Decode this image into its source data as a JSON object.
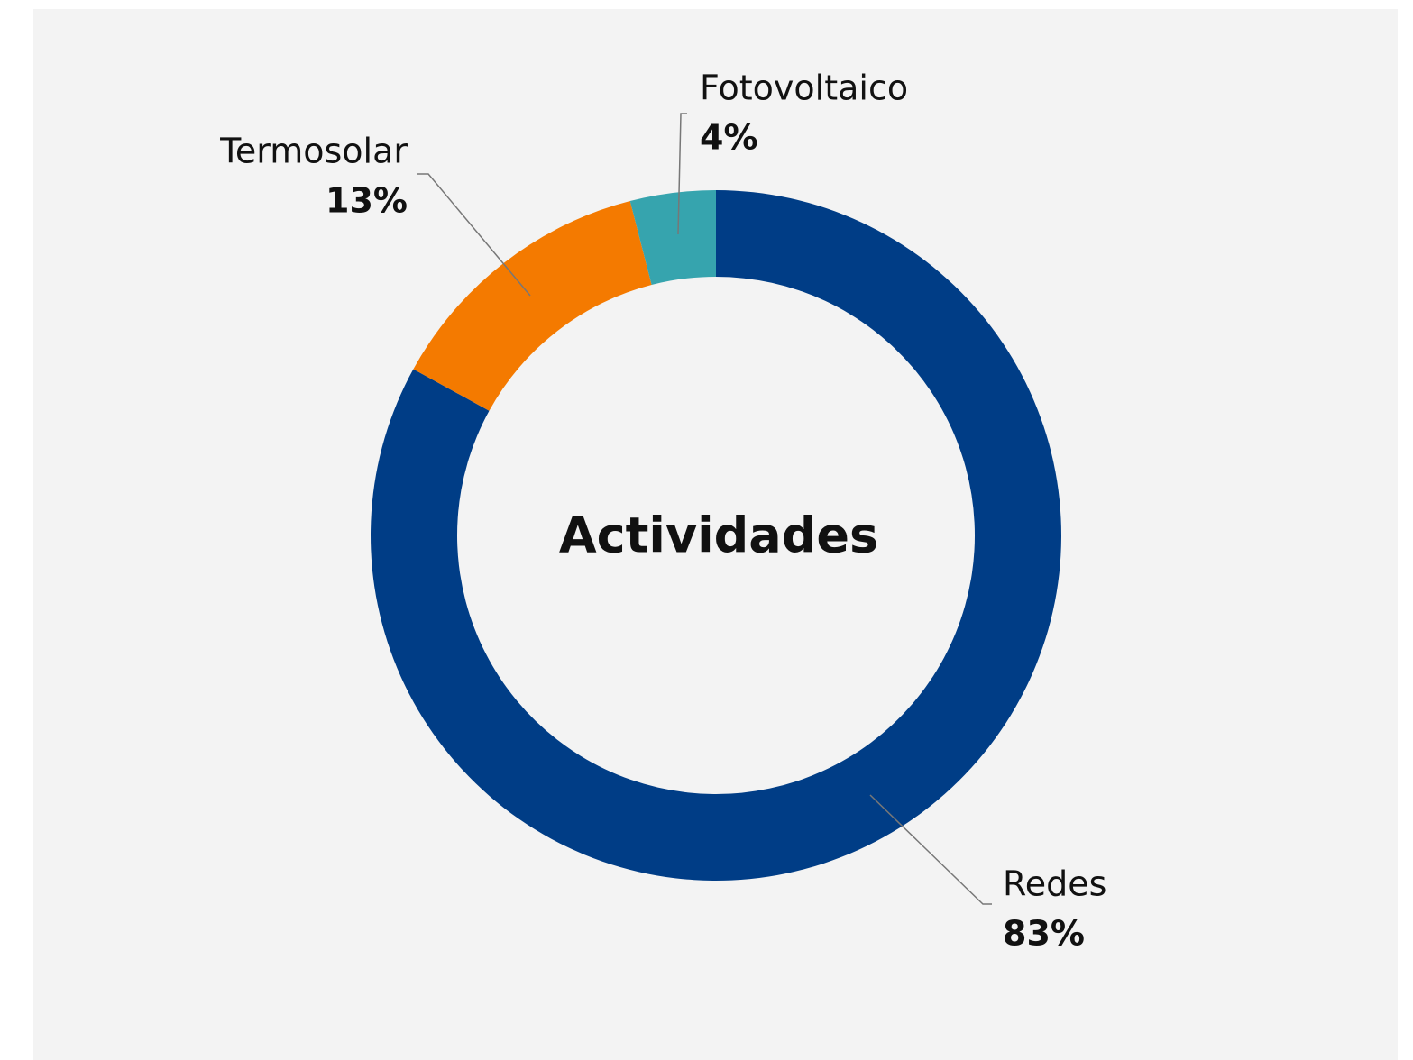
{
  "chart_data": {
    "type": "donut",
    "center_label": "Actividades",
    "categories": [
      "Redes",
      "Termosolar",
      "Fotovoltaico"
    ],
    "values": [
      83,
      13,
      4
    ],
    "value_labels": [
      "83%",
      "13%",
      "4%"
    ],
    "colors": [
      "#003d86",
      "#f47a00",
      "#36a4ae"
    ]
  }
}
